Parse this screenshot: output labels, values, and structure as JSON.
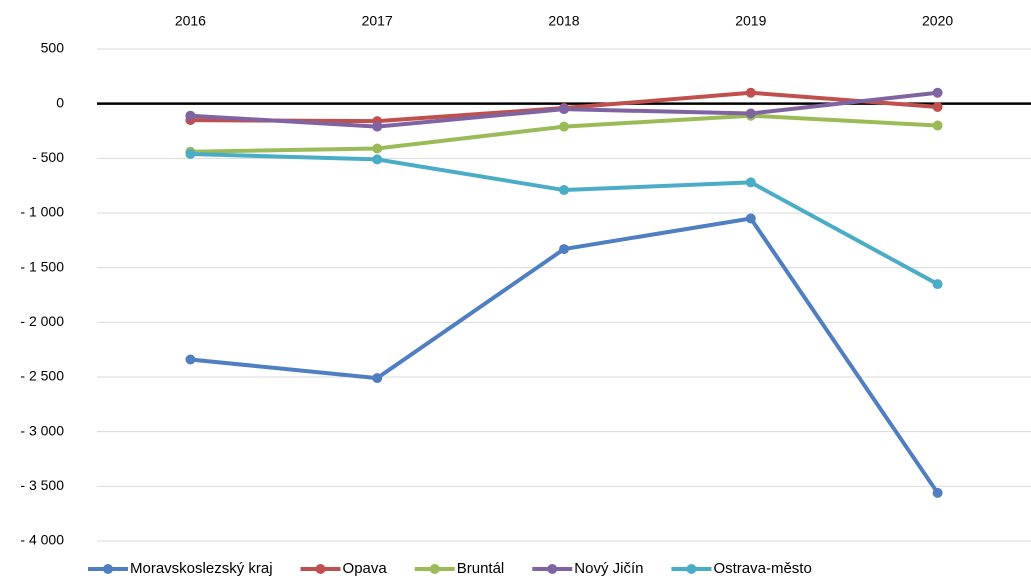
{
  "chart_data": {
    "type": "line",
    "categories": [
      "2016",
      "2017",
      "2018",
      "2019",
      "2020"
    ],
    "series": [
      {
        "name": "Moravskoslezský kraj",
        "color": "#4f7ec1",
        "values": [
          -2340,
          -2510,
          -1330,
          -1050,
          -3560
        ]
      },
      {
        "name": "Opava",
        "color": "#c0504d",
        "values": [
          -150,
          -160,
          -40,
          100,
          -30
        ]
      },
      {
        "name": "Bruntál",
        "color": "#9bbb59",
        "values": [
          -440,
          -410,
          -210,
          -110,
          -200
        ]
      },
      {
        "name": "Nový Jičín",
        "color": "#8064a2",
        "values": [
          -110,
          -210,
          -50,
          -90,
          100
        ]
      },
      {
        "name": "Ostrava-město",
        "color": "#4bacc6",
        "values": [
          -460,
          -510,
          -790,
          -720,
          -1650
        ]
      }
    ],
    "ylim": [
      -4000,
      500
    ],
    "yticks": [
      {
        "value": -4000,
        "label": "- 4 000"
      },
      {
        "value": -3500,
        "label": "- 3 500"
      },
      {
        "value": -3000,
        "label": "- 3 000"
      },
      {
        "value": -2500,
        "label": "- 2 500"
      },
      {
        "value": -2000,
        "label": "- 2 000"
      },
      {
        "value": -1500,
        "label": "- 1 500"
      },
      {
        "value": -1000,
        "label": "- 1 000"
      },
      {
        "value": -500,
        "label": "- 500"
      },
      0,
      500
    ],
    "grid": true,
    "legend": "bottom"
  }
}
